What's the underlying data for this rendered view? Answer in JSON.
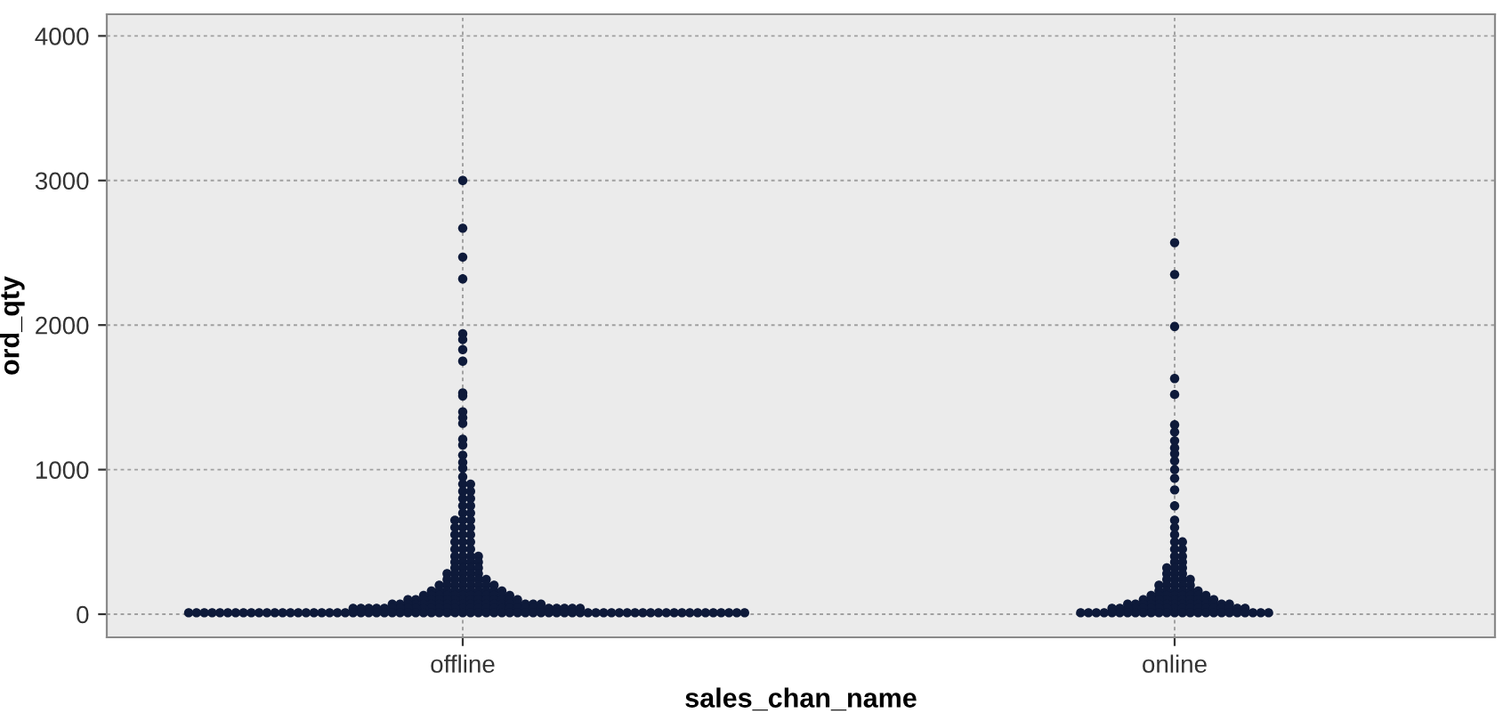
{
  "chart_data": {
    "type": "scatter",
    "xlabel": "sales_chan_name",
    "ylabel": "ord_qty",
    "categories": [
      "offline",
      "online"
    ],
    "ylim": [
      -160,
      4150
    ],
    "yticks": [
      0,
      1000,
      2000,
      3000,
      4000
    ],
    "grid": true,
    "marker": "circle",
    "series": [
      {
        "color": "#0e1a3a",
        "values": [
          3000,
          2670,
          2470,
          2320,
          1940,
          1900,
          1830,
          1750,
          1530,
          1510,
          1400,
          1360,
          1320,
          1210,
          1170,
          1100,
          1050,
          1010,
          950,
          900,
          900,
          850,
          850,
          800,
          800,
          750,
          750,
          700,
          700,
          650,
          650,
          650,
          600,
          600,
          600,
          550,
          550,
          550,
          500,
          500,
          500,
          450,
          450,
          450,
          400,
          400,
          400,
          400,
          360,
          360,
          360,
          360,
          320,
          320,
          320,
          320,
          280,
          280,
          280,
          280,
          280,
          240,
          240,
          240,
          240,
          240,
          240,
          200,
          200,
          200,
          200,
          200,
          200,
          200,
          200,
          160,
          160,
          160,
          160,
          160,
          160,
          160,
          160,
          160,
          160,
          130,
          130,
          130,
          130,
          130,
          130,
          130,
          130,
          130,
          130,
          130,
          130,
          100,
          100,
          100,
          100,
          100,
          100,
          100,
          100,
          100,
          100,
          100,
          100,
          100,
          100,
          100,
          70,
          70,
          70,
          70,
          70,
          70,
          70,
          70,
          70,
          70,
          70,
          70,
          70,
          70,
          70,
          70,
          70,
          70,
          70,
          70,
          40,
          40,
          40,
          40,
          40,
          40,
          40,
          40,
          40,
          40,
          40,
          40,
          40,
          40,
          40,
          40,
          40,
          40,
          40,
          40,
          40,
          40,
          40,
          40,
          40,
          40,
          40,
          40,
          40,
          40,
          10,
          10,
          10,
          10,
          10,
          10,
          10,
          10,
          10,
          10,
          10,
          10,
          10,
          10,
          10,
          10,
          10,
          10,
          10,
          10,
          10,
          10,
          10,
          10,
          10,
          10,
          10,
          10,
          10,
          10,
          10,
          10,
          10,
          10,
          10,
          10,
          10,
          10,
          10,
          10,
          10,
          10,
          10,
          10,
          10,
          10,
          10,
          10,
          10,
          10,
          10,
          10,
          10,
          10,
          10,
          10,
          10,
          10,
          10,
          10,
          10,
          10,
          10,
          10,
          10,
          10,
          10,
          10,
          10,
          10,
          10,
          10
        ],
        "x": [
          "offline",
          "offline",
          "offline",
          "offline",
          "offline",
          "offline",
          "offline",
          "offline",
          "offline",
          "offline",
          "offline",
          "offline",
          "offline",
          "offline",
          "offline",
          "offline",
          "offline",
          "offline",
          "offline",
          "offline",
          "offline",
          "offline",
          "offline",
          "offline",
          "offline",
          "offline",
          "offline",
          "offline",
          "offline",
          "offline",
          "offline",
          "offline",
          "offline",
          "offline",
          "offline",
          "offline",
          "offline",
          "offline",
          "offline",
          "offline",
          "offline",
          "offline",
          "offline",
          "offline",
          "offline",
          "offline",
          "offline",
          "offline",
          "offline",
          "offline",
          "offline",
          "offline",
          "offline",
          "offline",
          "offline",
          "offline",
          "offline",
          "offline",
          "offline",
          "offline",
          "offline",
          "offline",
          "offline",
          "offline",
          "offline",
          "offline",
          "offline",
          "offline",
          "offline",
          "offline",
          "offline",
          "offline",
          "offline",
          "offline",
          "offline",
          "offline",
          "offline",
          "offline",
          "offline",
          "offline",
          "offline",
          "offline",
          "offline",
          "offline",
          "offline",
          "offline",
          "offline",
          "offline",
          "offline",
          "offline",
          "offline",
          "offline",
          "offline",
          "offline",
          "offline",
          "offline",
          "offline",
          "offline",
          "offline",
          "offline",
          "offline",
          "offline",
          "offline",
          "offline",
          "offline",
          "offline",
          "offline",
          "offline",
          "offline",
          "offline",
          "offline",
          "offline",
          "offline",
          "offline",
          "offline",
          "offline",
          "offline",
          "offline",
          "offline",
          "offline",
          "offline",
          "offline",
          "offline",
          "offline",
          "offline",
          "offline",
          "offline",
          "offline",
          "offline",
          "offline",
          "offline",
          "offline",
          "offline",
          "offline",
          "offline",
          "offline",
          "offline",
          "offline",
          "offline",
          "offline",
          "offline",
          "offline",
          "offline",
          "offline",
          "offline",
          "offline",
          "offline",
          "offline",
          "offline",
          "offline",
          "offline",
          "offline",
          "offline",
          "offline",
          "offline",
          "offline",
          "offline",
          "offline",
          "offline",
          "offline",
          "offline",
          "offline",
          "offline",
          "offline",
          "offline",
          "offline",
          "offline",
          "offline",
          "offline",
          "offline",
          "offline",
          "offline",
          "offline",
          "offline",
          "offline",
          "offline",
          "offline",
          "offline",
          "offline",
          "offline",
          "offline",
          "offline",
          "offline",
          "offline",
          "offline",
          "offline",
          "offline",
          "offline",
          "offline",
          "offline",
          "offline",
          "offline",
          "offline",
          "offline",
          "offline",
          "offline",
          "offline",
          "offline",
          "offline",
          "offline",
          "offline",
          "offline",
          "offline",
          "offline",
          "offline",
          "offline",
          "offline",
          "offline",
          "offline",
          "offline",
          "offline",
          "offline",
          "offline",
          "offline",
          "offline",
          "offline",
          "offline",
          "offline",
          "offline",
          "offline",
          "offline",
          "offline",
          "offline",
          "offline",
          "offline",
          "offline",
          "offline",
          "offline",
          "offline",
          "offline",
          "offline",
          "offline",
          "offline",
          "offline"
        ]
      },
      {
        "color": "#0e1a3a",
        "values": [
          2570,
          2350,
          1990,
          1630,
          1520,
          1310,
          1260,
          1200,
          1150,
          1110,
          1060,
          1000,
          940,
          860,
          750,
          650,
          600,
          550,
          500,
          500,
          450,
          450,
          400,
          400,
          360,
          360,
          320,
          320,
          320,
          280,
          280,
          280,
          240,
          240,
          240,
          240,
          200,
          200,
          200,
          200,
          200,
          160,
          160,
          160,
          160,
          160,
          160,
          130,
          130,
          130,
          130,
          130,
          130,
          130,
          130,
          100,
          100,
          100,
          100,
          100,
          100,
          100,
          100,
          100,
          100,
          70,
          70,
          70,
          70,
          70,
          70,
          70,
          70,
          70,
          70,
          70,
          70,
          70,
          70,
          40,
          40,
          40,
          40,
          40,
          40,
          40,
          40,
          40,
          40,
          40,
          40,
          40,
          40,
          40,
          40,
          40,
          40,
          10,
          10,
          10,
          10,
          10,
          10,
          10,
          10,
          10,
          10,
          10,
          10,
          10,
          10,
          10,
          10,
          10,
          10,
          10,
          10,
          10,
          10,
          10,
          10,
          10
        ],
        "x": [
          "online",
          "online",
          "online",
          "online",
          "online",
          "online",
          "online",
          "online",
          "online",
          "online",
          "online",
          "online",
          "online",
          "online",
          "online",
          "online",
          "online",
          "online",
          "online",
          "online",
          "online",
          "online",
          "online",
          "online",
          "online",
          "online",
          "online",
          "online",
          "online",
          "online",
          "online",
          "online",
          "online",
          "online",
          "online",
          "online",
          "online",
          "online",
          "online",
          "online",
          "online",
          "online",
          "online",
          "online",
          "online",
          "online",
          "online",
          "online",
          "online",
          "online",
          "online",
          "online",
          "online",
          "online",
          "online",
          "online",
          "online",
          "online",
          "online",
          "online",
          "online",
          "online",
          "online",
          "online",
          "online",
          "online",
          "online",
          "online",
          "online",
          "online",
          "online",
          "online",
          "online",
          "online",
          "online",
          "online",
          "online",
          "online",
          "online",
          "online",
          "online",
          "online",
          "online",
          "online",
          "online",
          "online",
          "online",
          "online",
          "online",
          "online",
          "online",
          "online",
          "online",
          "online",
          "online",
          "online",
          "online",
          "online",
          "online",
          "online",
          "online",
          "online",
          "online",
          "online",
          "online",
          "online",
          "online",
          "online",
          "online",
          "online",
          "online",
          "online",
          "online",
          "online",
          "online",
          "online",
          "online",
          "online",
          "online",
          "online",
          "online",
          "online"
        ]
      }
    ]
  }
}
